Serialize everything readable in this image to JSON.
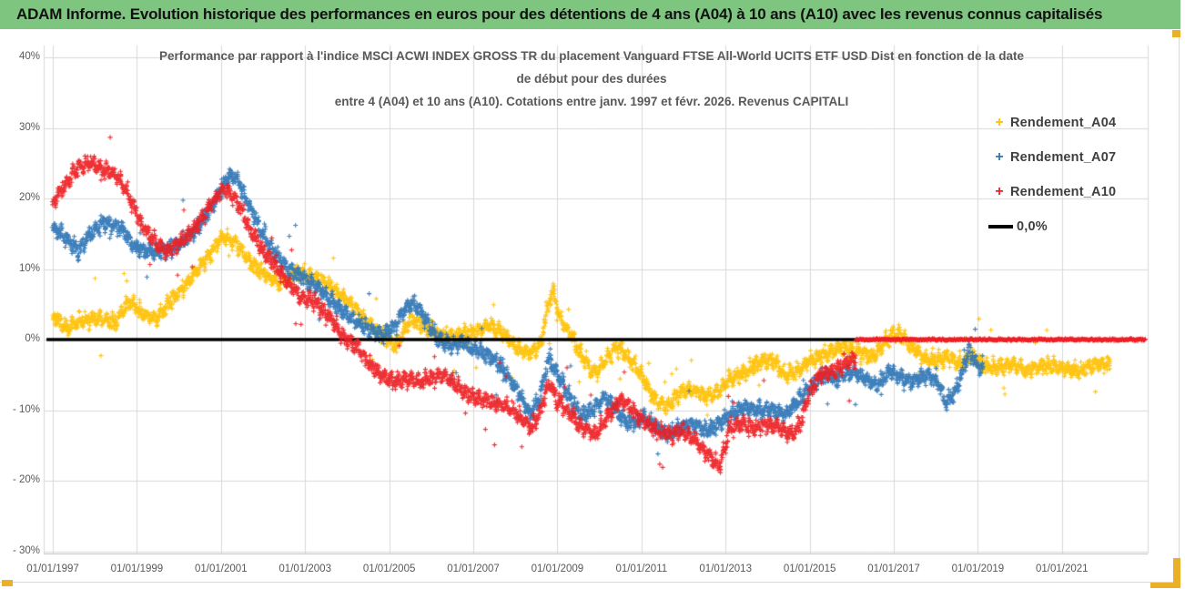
{
  "header": {
    "title": "ADAM Informe. Evolution historique des performances en euros pour des détentions de 4 ans (A04) à 10 ans (A10) avec les revenus connus capitalisés",
    "background": "#7EC67F"
  },
  "chart_data": {
    "type": "scatter",
    "title_lines": [
      "Performance par rapport à l'indice MSCI ACWI INDEX GROSS TR  du placement Vanguard FTSE All-World UCITS ETF USD Dist en fonction de la date",
      "de début pour des durées",
      "entre 4 (A04) et 10 ans (A10). Cotations entre janv. 1997 et févr. 2026. Revenus CAPITALI"
    ],
    "grid": true,
    "grid_color": "#d9d9d9",
    "axis_text_color": "#595959",
    "x_axis": {
      "tick_labels": [
        "01/01/1997",
        "01/01/1999",
        "01/01/2001",
        "01/01/2003",
        "01/01/2005",
        "01/01/2007",
        "01/01/2009",
        "01/01/2011",
        "01/01/2013",
        "01/01/2015",
        "01/01/2017",
        "01/01/2019",
        "01/01/2021"
      ],
      "tick_years": [
        1997,
        1999,
        2001,
        2003,
        2005,
        2007,
        2009,
        2011,
        2013,
        2015,
        2017,
        2019,
        2021
      ],
      "range_years": [
        1996.78,
        2023.05
      ]
    },
    "y_axis": {
      "tick_labels": [
        "40%",
        "30%",
        "20%",
        "10%",
        "0%",
        "- 10%",
        "- 20%",
        "- 30%"
      ],
      "tick_values": [
        40,
        30,
        20,
        10,
        0,
        -10,
        -20,
        -30
      ],
      "range": [
        -30,
        40
      ]
    },
    "baseline": {
      "label": "0,0%",
      "value": 0,
      "color": "#000000",
      "start_year": 1996.85,
      "end_year": 2022.98
    },
    "series": [
      {
        "name": "Rendement_A04",
        "color": "#FFC000",
        "marker": "+",
        "spread": 1.7,
        "keyframes": [
          [
            1997.0,
            3.5
          ],
          [
            1997.3,
            1.5
          ],
          [
            1997.6,
            2.5
          ],
          [
            1998.0,
            3
          ],
          [
            1998.5,
            2.5
          ],
          [
            1998.8,
            5.5
          ],
          [
            1999.2,
            3.5
          ],
          [
            1999.5,
            3
          ],
          [
            1999.8,
            5.5
          ],
          [
            2000.2,
            8
          ],
          [
            2000.6,
            11
          ],
          [
            2001.0,
            14.5
          ],
          [
            2001.3,
            14
          ],
          [
            2001.7,
            11
          ],
          [
            2002.0,
            9.5
          ],
          [
            2002.4,
            8
          ],
          [
            2002.8,
            9.5
          ],
          [
            2003.2,
            9
          ],
          [
            2003.6,
            7.5
          ],
          [
            2004.0,
            5.5
          ],
          [
            2004.4,
            3
          ],
          [
            2004.8,
            1
          ],
          [
            2005.15,
            -1
          ],
          [
            2005.5,
            3
          ],
          [
            2005.8,
            2
          ],
          [
            2006.2,
            0.5
          ],
          [
            2006.6,
            0.5
          ],
          [
            2007.0,
            1
          ],
          [
            2007.4,
            2
          ],
          [
            2007.7,
            1
          ],
          [
            2008.0,
            -1
          ],
          [
            2008.3,
            -2
          ],
          [
            2008.6,
            -1
          ],
          [
            2008.78,
            5
          ],
          [
            2008.9,
            7
          ],
          [
            2009.05,
            3
          ],
          [
            2009.3,
            1
          ],
          [
            2009.6,
            -2.5
          ],
          [
            2009.9,
            -5
          ],
          [
            2010.2,
            -2.5
          ],
          [
            2010.45,
            -1
          ],
          [
            2010.7,
            -2.5
          ],
          [
            2011.0,
            -5
          ],
          [
            2011.3,
            -8.5
          ],
          [
            2011.6,
            -9.5
          ],
          [
            2011.9,
            -7.5
          ],
          [
            2012.2,
            -7
          ],
          [
            2012.5,
            -8
          ],
          [
            2012.8,
            -7.5
          ],
          [
            2013.1,
            -5.5
          ],
          [
            2013.5,
            -4.5
          ],
          [
            2013.9,
            -3
          ],
          [
            2014.15,
            -3
          ],
          [
            2014.4,
            -5
          ],
          [
            2014.7,
            -4.5
          ],
          [
            2015.0,
            -3
          ],
          [
            2015.4,
            -2
          ],
          [
            2015.8,
            -1
          ],
          [
            2016.1,
            -1.5
          ],
          [
            2016.5,
            -2.5
          ],
          [
            2016.9,
            0.5
          ],
          [
            2017.1,
            1
          ],
          [
            2017.35,
            -0.5
          ],
          [
            2017.7,
            -2.5
          ],
          [
            2018.0,
            -3
          ],
          [
            2018.3,
            -2.5
          ],
          [
            2018.6,
            -3.5
          ],
          [
            2018.85,
            -2
          ],
          [
            2019.1,
            -3.5
          ],
          [
            2019.4,
            -4
          ],
          [
            2019.8,
            -3.5
          ],
          [
            2020.2,
            -4.5
          ],
          [
            2020.6,
            -3.5
          ],
          [
            2021.0,
            -4
          ],
          [
            2021.4,
            -4.5
          ],
          [
            2021.8,
            -3.5
          ],
          [
            2022.15,
            -3.5
          ]
        ]
      },
      {
        "name": "Rendement_A07",
        "color": "#2E75B6",
        "marker": "+",
        "spread": 1.8,
        "keyframes": [
          [
            1997.0,
            16
          ],
          [
            1997.3,
            14.5
          ],
          [
            1997.6,
            12.5
          ],
          [
            1997.9,
            15
          ],
          [
            1998.2,
            16.5
          ],
          [
            1998.6,
            16
          ],
          [
            1998.9,
            13.5
          ],
          [
            1999.2,
            12.5
          ],
          [
            1999.6,
            12.5
          ],
          [
            2000.0,
            13.5
          ],
          [
            2000.4,
            15.5
          ],
          [
            2000.8,
            19
          ],
          [
            2001.1,
            22.5
          ],
          [
            2001.3,
            23.5
          ],
          [
            2001.6,
            20
          ],
          [
            2001.9,
            16
          ],
          [
            2002.2,
            13
          ],
          [
            2002.6,
            10
          ],
          [
            2003.0,
            8.5
          ],
          [
            2003.3,
            7.5
          ],
          [
            2003.7,
            5
          ],
          [
            2004.1,
            3
          ],
          [
            2004.5,
            1.5
          ],
          [
            2004.85,
            0.5
          ],
          [
            2005.15,
            2
          ],
          [
            2005.5,
            5.5
          ],
          [
            2005.8,
            3.5
          ],
          [
            2006.1,
            0.5
          ],
          [
            2006.45,
            -1
          ],
          [
            2006.8,
            -0.5
          ],
          [
            2007.1,
            -1.5
          ],
          [
            2007.45,
            -2.5
          ],
          [
            2007.8,
            -5
          ],
          [
            2008.1,
            -8
          ],
          [
            2008.35,
            -10.5
          ],
          [
            2008.6,
            -8
          ],
          [
            2008.8,
            -2.5
          ],
          [
            2009.0,
            -5
          ],
          [
            2009.3,
            -8.5
          ],
          [
            2009.6,
            -11
          ],
          [
            2009.9,
            -9.5
          ],
          [
            2010.15,
            -8
          ],
          [
            2010.45,
            -10.5
          ],
          [
            2010.75,
            -12
          ],
          [
            2011.05,
            -11
          ],
          [
            2011.35,
            -12.5
          ],
          [
            2011.65,
            -13.5
          ],
          [
            2011.95,
            -12.5
          ],
          [
            2012.25,
            -12
          ],
          [
            2012.55,
            -13
          ],
          [
            2012.85,
            -12
          ],
          [
            2013.15,
            -10.5
          ],
          [
            2013.45,
            -9.5
          ],
          [
            2013.8,
            -10
          ],
          [
            2014.15,
            -10
          ],
          [
            2014.45,
            -10.5
          ],
          [
            2014.75,
            -8.5
          ],
          [
            2015.05,
            -6.5
          ],
          [
            2015.35,
            -5
          ],
          [
            2015.7,
            -5.5
          ],
          [
            2016.0,
            -4.5
          ],
          [
            2016.3,
            -5.5
          ],
          [
            2016.6,
            -6.5
          ],
          [
            2016.9,
            -4.5
          ],
          [
            2017.2,
            -5.5
          ],
          [
            2017.5,
            -6
          ],
          [
            2017.8,
            -5
          ],
          [
            2018.05,
            -6
          ],
          [
            2018.25,
            -9
          ],
          [
            2018.5,
            -7
          ],
          [
            2018.8,
            -1.5
          ],
          [
            2019.0,
            -4
          ],
          [
            2019.12,
            -4
          ]
        ]
      },
      {
        "name": "Rendement_A10",
        "color": "#ED1F24",
        "marker": "+",
        "spread": 1.8,
        "keyframes": [
          [
            1997.0,
            19.5
          ],
          [
            1997.3,
            22
          ],
          [
            1997.6,
            24.5
          ],
          [
            1997.9,
            25
          ],
          [
            1998.2,
            24
          ],
          [
            1998.5,
            23.5
          ],
          [
            1998.8,
            20.5
          ],
          [
            1999.1,
            16.5
          ],
          [
            1999.4,
            14
          ],
          [
            1999.7,
            12.5
          ],
          [
            2000.0,
            13.5
          ],
          [
            2000.4,
            16
          ],
          [
            2000.8,
            19.5
          ],
          [
            2001.1,
            21.5
          ],
          [
            2001.4,
            19.5
          ],
          [
            2001.7,
            15.5
          ],
          [
            2002.0,
            12.5
          ],
          [
            2002.3,
            10.5
          ],
          [
            2002.6,
            8
          ],
          [
            2002.9,
            6
          ],
          [
            2003.2,
            5.5
          ],
          [
            2003.6,
            3
          ],
          [
            2003.9,
            0.5
          ],
          [
            2004.2,
            -1
          ],
          [
            2004.5,
            -3
          ],
          [
            2004.8,
            -5
          ],
          [
            2005.1,
            -6
          ],
          [
            2005.4,
            -5.5
          ],
          [
            2005.7,
            -6
          ],
          [
            2006.0,
            -5.5
          ],
          [
            2006.3,
            -5
          ],
          [
            2006.6,
            -6.5
          ],
          [
            2006.9,
            -8
          ],
          [
            2007.2,
            -8.5
          ],
          [
            2007.5,
            -9
          ],
          [
            2007.8,
            -9.5
          ],
          [
            2008.1,
            -11
          ],
          [
            2008.4,
            -12.5
          ],
          [
            2008.6,
            -10
          ],
          [
            2008.8,
            -6
          ],
          [
            2009.0,
            -8.5
          ],
          [
            2009.3,
            -10.5
          ],
          [
            2009.6,
            -12.5
          ],
          [
            2009.9,
            -13.5
          ],
          [
            2010.2,
            -11
          ],
          [
            2010.5,
            -8.5
          ],
          [
            2010.8,
            -10
          ],
          [
            2011.1,
            -12
          ],
          [
            2011.4,
            -13
          ],
          [
            2011.7,
            -13.5
          ],
          [
            2012.0,
            -13
          ],
          [
            2012.3,
            -14.5
          ],
          [
            2012.6,
            -16.5
          ],
          [
            2012.85,
            -18
          ],
          [
            2013.1,
            -12.5
          ],
          [
            2013.4,
            -12
          ],
          [
            2013.7,
            -12.5
          ],
          [
            2014.0,
            -12
          ],
          [
            2014.3,
            -12.5
          ],
          [
            2014.6,
            -13.5
          ],
          [
            2014.8,
            -11.5
          ],
          [
            2015.0,
            -7.5
          ],
          [
            2015.25,
            -5
          ],
          [
            2015.55,
            -4.5
          ],
          [
            2015.85,
            -3.5
          ],
          [
            2016.1,
            -2.5
          ]
        ],
        "zero_line": {
          "start_year": 2016.1,
          "end_year": 2022.98,
          "value": 0
        }
      }
    ],
    "legend": [
      {
        "label": "Rendement_A04",
        "marker": "+",
        "color": "#FFC000"
      },
      {
        "label": "Rendement_A07",
        "marker": "+",
        "color": "#2E75B6"
      },
      {
        "label": "Rendement_A10",
        "marker": "+",
        "color": "#ED1F24"
      },
      {
        "label": "0,0%",
        "marker": "line",
        "color": "#000000"
      }
    ],
    "legend_position": "right"
  }
}
